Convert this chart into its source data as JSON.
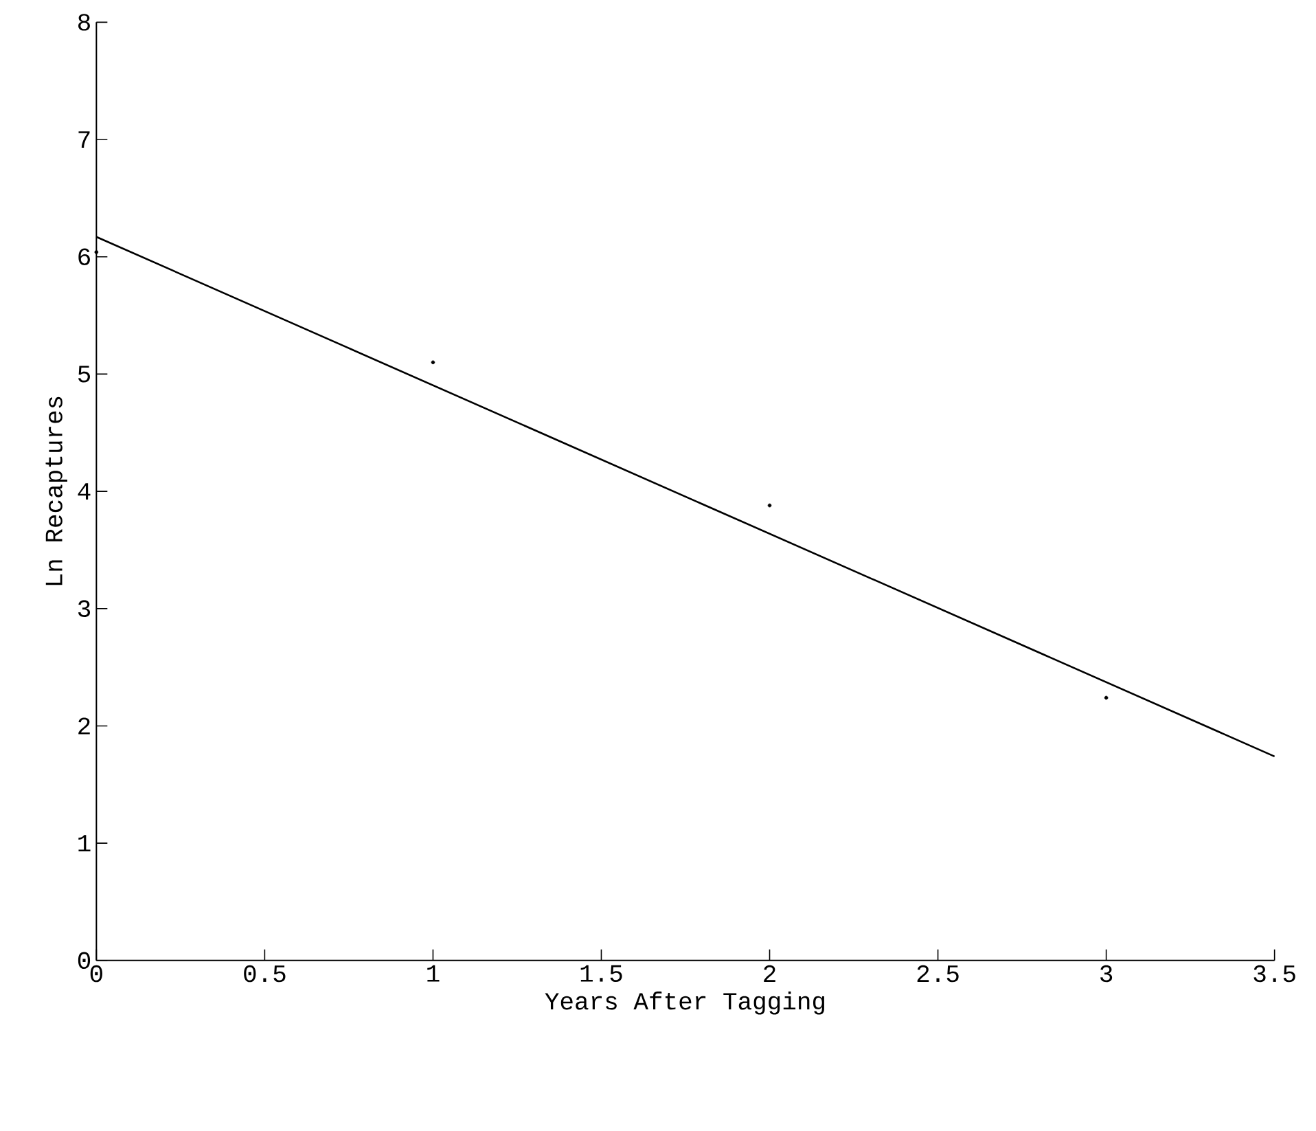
{
  "chart_data": {
    "type": "scatter",
    "xlabel": "Years After Tagging",
    "ylabel": "Ln Recaptures",
    "x": [
      0,
      1,
      2,
      3
    ],
    "series": [
      {
        "color": "#000000",
        "values": [
          6.04,
          5.1,
          3.88,
          2.24
        ],
        "marker": "circle"
      },
      {
        "type": "line",
        "color": "#000000",
        "x": [
          0,
          3.5
        ],
        "values": [
          6.17,
          1.74
        ],
        "marker": "none"
      }
    ],
    "xlim": [
      0,
      3.5
    ],
    "ylim": [
      0,
      8
    ],
    "xticks": [
      {
        "value": 0,
        "label": "0"
      },
      0.5,
      1,
      1.5,
      2,
      2.5,
      3,
      3.5
    ],
    "yticks": [
      0,
      1,
      2,
      3,
      4,
      5,
      6,
      7,
      8
    ],
    "grid": false
  }
}
